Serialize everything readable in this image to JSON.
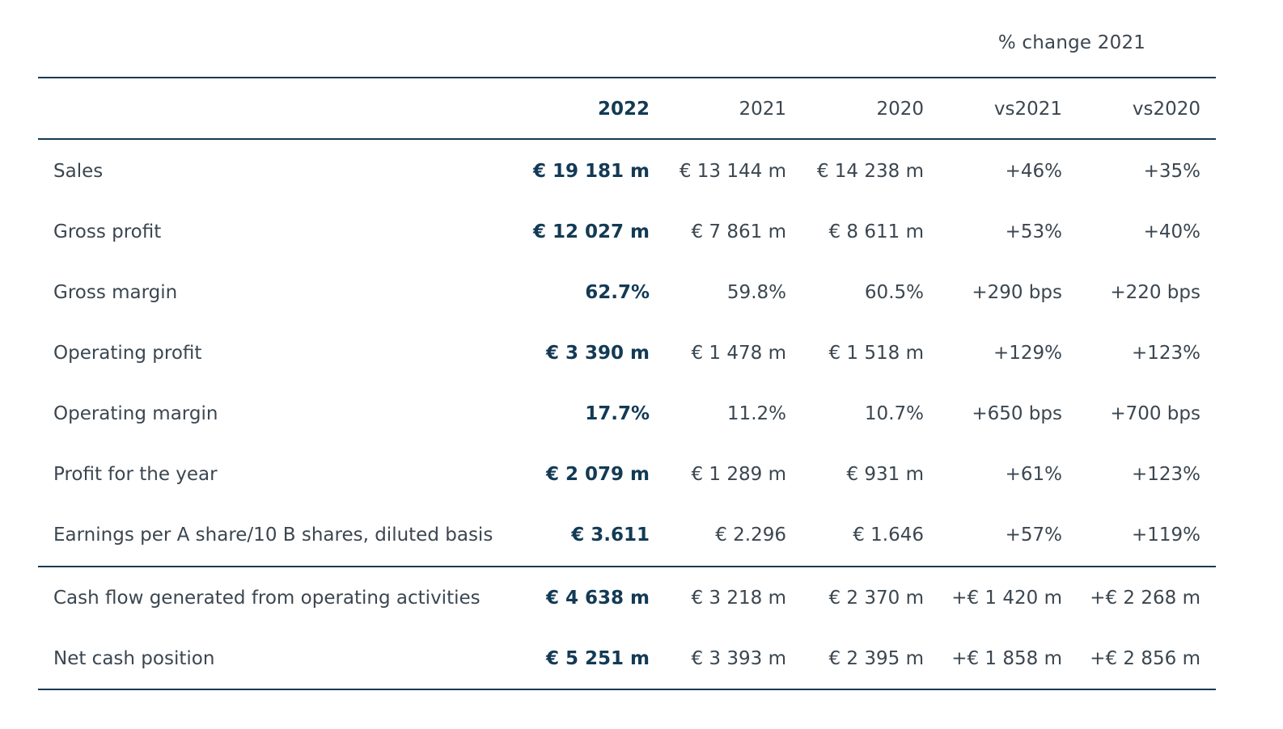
{
  "super_header": "% change 2021",
  "columns": {
    "y2022": "2022",
    "y2021": "2021",
    "y2020": "2020",
    "vs2021": "vs2021",
    "vs2020": "vs2020"
  },
  "rows": [
    {
      "label": "Sales",
      "y2022": "€ 19 181 m",
      "y2021": "€ 13 144 m",
      "y2020": "€ 14 238 m",
      "vs2021": "+46%",
      "vs2020": "+35%"
    },
    {
      "label": "Gross profit",
      "y2022": "€ 12 027 m",
      "y2021": "€ 7 861 m",
      "y2020": "€ 8 611 m",
      "vs2021": "+53%",
      "vs2020": "+40%"
    },
    {
      "label": "Gross margin",
      "y2022": "62.7%",
      "y2021": "59.8%",
      "y2020": "60.5%",
      "vs2021": "+290 bps",
      "vs2020": "+220 bps"
    },
    {
      "label": "Operating profit",
      "y2022": "€ 3 390 m",
      "y2021": "€ 1 478 m",
      "y2020": "€ 1 518 m",
      "vs2021": "+129%",
      "vs2020": "+123%"
    },
    {
      "label": "Operating margin",
      "y2022": "17.7%",
      "y2021": "11.2%",
      "y2020": "10.7%",
      "vs2021": "+650 bps",
      "vs2020": "+700 bps"
    },
    {
      "label": "Profit for the year",
      "y2022": "€ 2 079 m",
      "y2021": "€ 1 289 m",
      "y2020": "€ 931 m",
      "vs2021": "+61%",
      "vs2020": "+123%"
    },
    {
      "label": "Earnings per A share/10 B shares, diluted basis",
      "y2022": "€ 3.611",
      "y2021": "€ 2.296",
      "y2020": "€ 1.646",
      "vs2021": "+57%",
      "vs2020": "+119%"
    },
    {
      "label": "Cash flow generated from operating activities",
      "y2022": "€ 4 638 m",
      "y2021": "€ 3 218 m",
      "y2020": "€ 2 370 m",
      "vs2021": "+€ 1 420 m",
      "vs2020": "+€ 2 268 m"
    },
    {
      "label": "Net cash position",
      "y2022": "€ 5 251 m",
      "y2021": "€ 3 393 m",
      "y2020": "€ 2 395 m",
      "vs2021": "+€ 1 858 m",
      "vs2020": "+€ 2 856 m"
    }
  ],
  "colors": {
    "accent": "#133a55",
    "text": "#3b4650"
  }
}
